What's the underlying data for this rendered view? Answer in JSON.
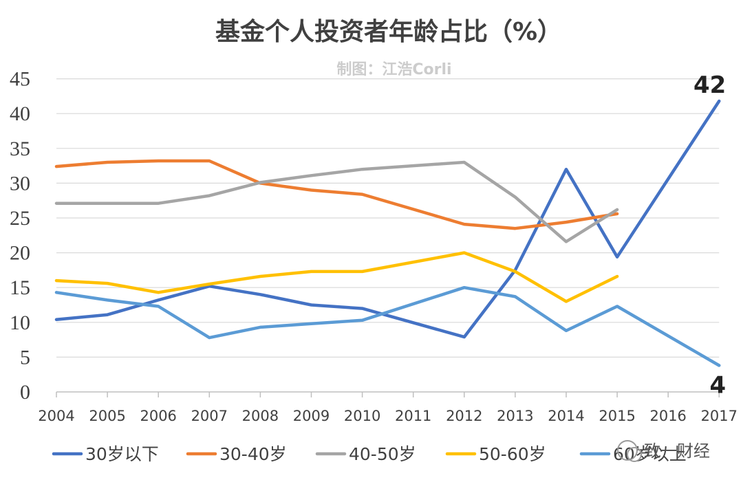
{
  "chart_data": {
    "type": "line",
    "title": "基金个人投资者年龄占比（%）",
    "subtitle": "制图：江浩Corli",
    "xlabel": "",
    "ylabel": "",
    "ylim": [
      0,
      45
    ],
    "yticks": [
      0,
      5,
      10,
      15,
      20,
      25,
      30,
      35,
      40,
      45
    ],
    "grid": true,
    "legend_position": "bottom",
    "categories": [
      "2004",
      "2005",
      "2006",
      "2007",
      "2008",
      "2009",
      "2010",
      "2011",
      "2012",
      "2013",
      "2014",
      "2015",
      "2016",
      "2017"
    ],
    "series": [
      {
        "name": "30岁以下",
        "color": "#4472C4",
        "values": [
          10.4,
          11.1,
          13.2,
          15.2,
          14.0,
          12.5,
          12.0,
          null,
          7.9,
          17.5,
          32.0,
          19.4,
          null,
          41.8
        ],
        "connect_gaps": true
      },
      {
        "name": "30-40岁",
        "color": "#ED7D31",
        "values": [
          32.4,
          33.0,
          33.2,
          33.2,
          30.0,
          29.0,
          28.4,
          null,
          24.1,
          23.5,
          24.4,
          25.6,
          null,
          null
        ],
        "connect_gaps": true
      },
      {
        "name": "40-50岁",
        "color": "#A5A5A5",
        "values": [
          27.1,
          27.1,
          27.1,
          28.2,
          30.1,
          31.1,
          32.0,
          null,
          33.0,
          28.0,
          21.6,
          26.2,
          null,
          null
        ],
        "connect_gaps": true
      },
      {
        "name": "50-60岁",
        "color": "#FFC000",
        "values": [
          16.0,
          15.6,
          14.3,
          15.5,
          16.6,
          17.3,
          17.3,
          null,
          20.0,
          17.3,
          13.0,
          16.6,
          null,
          null
        ],
        "connect_gaps": true
      },
      {
        "name": "60岁以上",
        "color": "#5B9BD5",
        "values": [
          14.3,
          13.2,
          12.3,
          7.8,
          9.3,
          9.8,
          10.3,
          null,
          15.0,
          13.7,
          8.8,
          12.3,
          null,
          3.8
        ],
        "connect_gaps": true
      }
    ],
    "annotations": [
      {
        "text": "42",
        "series": "30岁以下",
        "category": "2017"
      },
      {
        "text": "4",
        "series": "60岁以上",
        "category": "2017"
      }
    ]
  },
  "watermark": "致一财经"
}
